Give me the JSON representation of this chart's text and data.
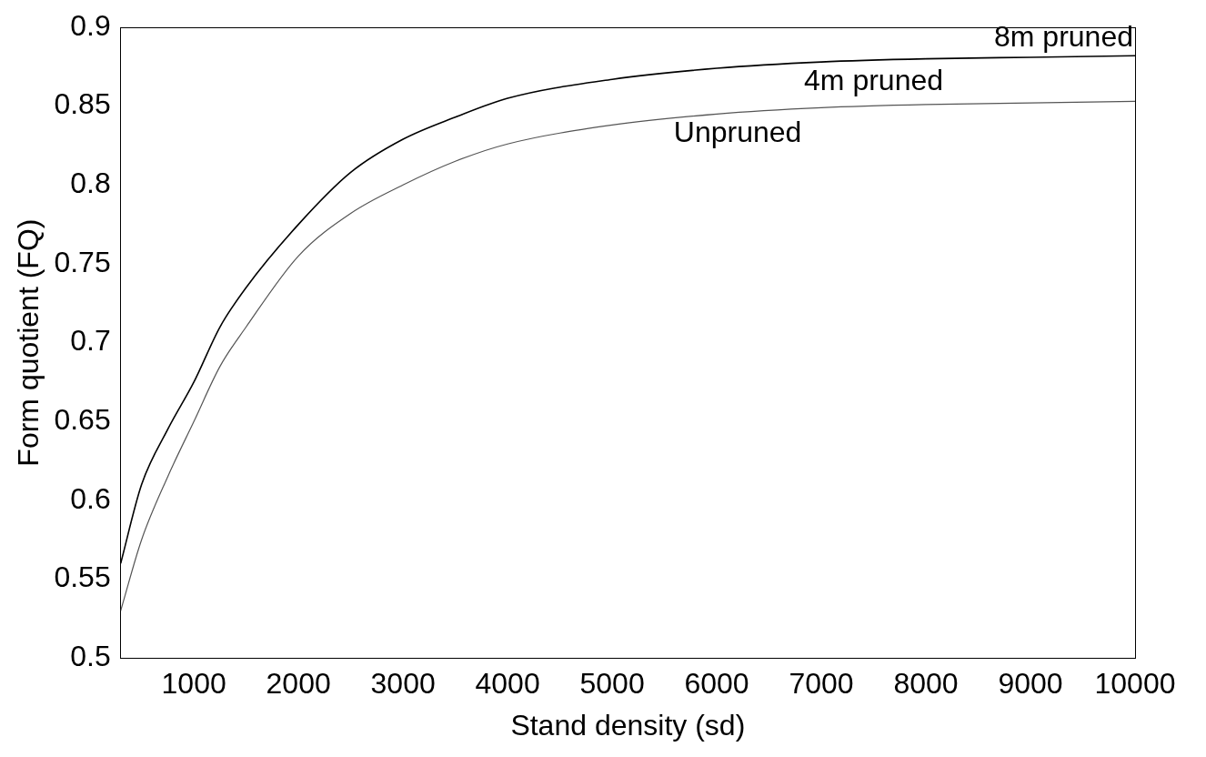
{
  "chart_data": {
    "type": "line",
    "xlabel": "Stand density (sd)",
    "ylabel": "Form quotient (FQ)",
    "x": [
      300,
      500,
      750,
      1000,
      1250,
      1500,
      2000,
      2500,
      3000,
      3500,
      4000,
      5000,
      6000,
      7000,
      8000,
      9000,
      10000
    ],
    "series": [
      {
        "name": "8m pruned",
        "color": "#000000",
        "values": [
          0.56,
          0.61,
          0.645,
          0.675,
          0.71,
          0.735,
          0.775,
          0.808,
          0.829,
          0.843,
          0.855,
          0.867,
          0.874,
          0.878,
          0.88,
          0.881,
          0.882
        ]
      },
      {
        "name": "4m pruned",
        "color": "#555555",
        "values": [
          0.53,
          0.575,
          0.615,
          0.65,
          0.685,
          0.71,
          0.755,
          0.782,
          0.8,
          0.815,
          0.826,
          0.838,
          0.845,
          0.849,
          0.851,
          0.852,
          0.853
        ]
      }
    ],
    "annotations": [
      "Unpruned"
    ],
    "xlim": [
      300,
      10000
    ],
    "xticks": [
      1000,
      2000,
      3000,
      4000,
      5000,
      6000,
      7000,
      8000,
      9000,
      10000
    ],
    "ylim": [
      0.5,
      0.9
    ],
    "yticks": [
      0.5,
      0.55,
      0.6,
      0.65,
      0.7,
      0.75,
      0.8,
      0.85,
      0.9
    ],
    "marker": "none",
    "line_style": "solid"
  }
}
